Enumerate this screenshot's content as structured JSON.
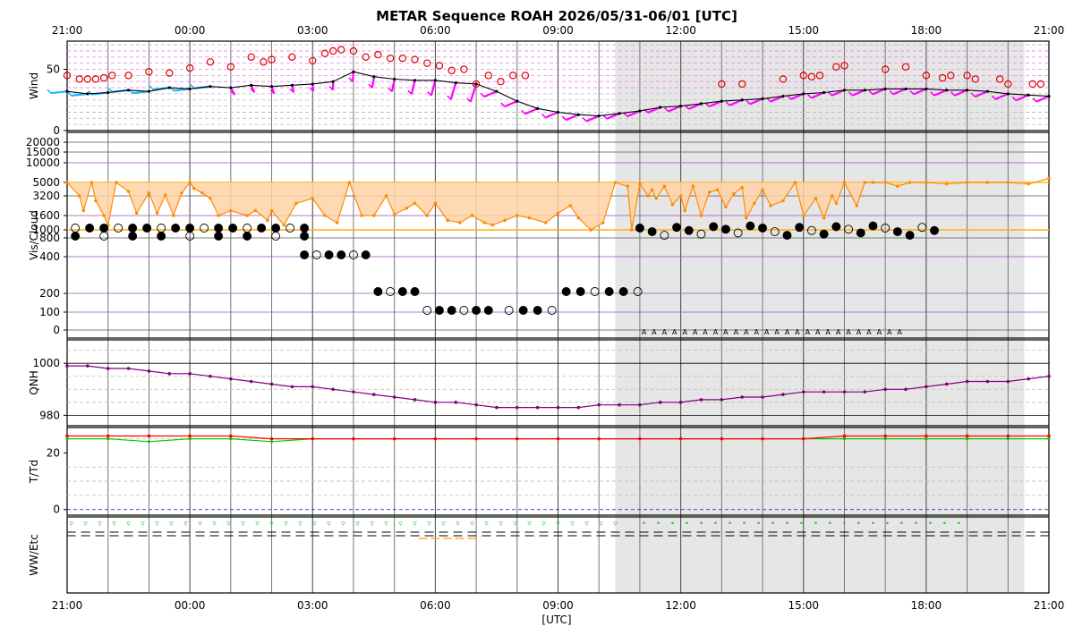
{
  "chart_data": {
    "type": "line",
    "title": "METAR Sequence ROAH 2026/05/31-06/01 [UTC]",
    "xlabel": "[UTC]",
    "x_ticks": [
      "21:00",
      "00:00",
      "03:00",
      "06:00",
      "09:00",
      "12:00",
      "15:00",
      "18:00",
      "21:00"
    ],
    "x_range_hours": [
      0,
      24
    ],
    "night_shading_hours": [
      13.4,
      23.4
    ],
    "colors": {
      "wind_gust": "#e00000",
      "wind_barb_low": "#1eb4ff",
      "wind_barb_high": "#ff00ff",
      "visibility": "#ff8c00",
      "visibility_fill": "#ffd2a6",
      "qnh": "#800080",
      "temperature": "#ff0000",
      "dewpoint": "#00cc00",
      "wx": "#22cc22",
      "shade": "#e6e6e6"
    },
    "panels": [
      {
        "id": "wind",
        "ylabel": "Wind",
        "yticks": [
          0,
          50
        ],
        "ylim": [
          0,
          73
        ],
        "series": [
          {
            "role": "wind_speed",
            "x": [
              0,
              0.5,
              1,
              1.5,
              2,
              2.5,
              3,
              3.5,
              4,
              4.5,
              5,
              5.5,
              6,
              6.5,
              7,
              7.5,
              8,
              8.5,
              9,
              9.5,
              10,
              10.5,
              11,
              11.5,
              12,
              12.5,
              13,
              13.5,
              14,
              14.5,
              15,
              15.5,
              16,
              16.5,
              17,
              17.5,
              18,
              18.5,
              19,
              19.5,
              20,
              20.5,
              21,
              21.5,
              22,
              22.5,
              23,
              23.5,
              24
            ],
            "y": [
              32,
              30,
              31,
              33,
              32,
              35,
              34,
              36,
              35,
              37,
              36,
              37,
              38,
              40,
              48,
              44,
              42,
              41,
              41,
              39,
              38,
              32,
              24,
              18,
              15,
              13,
              12,
              14,
              16,
              19,
              20,
              22,
              24,
              25,
              26,
              28,
              30,
              31,
              33,
              33,
              34,
              34,
              34,
              33,
              33,
              32,
              30,
              29,
              28
            ]
          },
          {
            "role": "wind_gust",
            "x": [
              0,
              0.3,
              0.5,
              0.7,
              0.9,
              1.1,
              1.5,
              2,
              2.5,
              3,
              3.5,
              4,
              4.5,
              4.8,
              5,
              5.5,
              6,
              6.3,
              6.5,
              6.7,
              7,
              7.3,
              7.6,
              7.9,
              8.2,
              8.5,
              8.8,
              9.1,
              9.4,
              9.7,
              10,
              10.3,
              10.6,
              10.9,
              11.2,
              16,
              16.5,
              17.5,
              18,
              18.2,
              18.4,
              18.8,
              19,
              20,
              20.5,
              21,
              21.4,
              21.6,
              22,
              22.2,
              22.8,
              23,
              23.6,
              23.8
            ],
            "y": [
              45,
              42,
              42,
              42,
              43,
              45,
              45,
              48,
              47,
              51,
              56,
              52,
              60,
              56,
              58,
              60,
              57,
              63,
              65,
              66,
              65,
              60,
              62,
              59,
              59,
              58,
              55,
              53,
              49,
              50,
              38,
              45,
              40,
              45,
              45,
              38,
              38,
              42,
              45,
              44,
              45,
              52,
              53,
              50,
              52,
              45,
              43,
              45,
              45,
              42,
              42,
              38,
              38,
              38
            ]
          }
        ]
      },
      {
        "id": "vis",
        "ylabel": "Vis/Cloud",
        "yticks": [
          "0",
          "100",
          "200",
          "400",
          "800",
          "1000",
          "1600",
          "3200",
          "5000",
          "10000",
          "15000",
          "20000"
        ],
        "series": [
          {
            "role": "visibility",
            "x": [
              0,
              0.3,
              0.4,
              0.6,
              0.7,
              0.9,
              1.0,
              1.2,
              1.5,
              1.7,
              2.0,
              2.2,
              2.4,
              2.6,
              2.8,
              3.0,
              3.1,
              3.3,
              3.5,
              3.7,
              4.0,
              4.4,
              4.6,
              4.9,
              5.0,
              5.3,
              5.6,
              6.0,
              6.3,
              6.6,
              6.9,
              7.2,
              7.5,
              7.8,
              8.0,
              8.3,
              8.5,
              8.8,
              9.0,
              9.3,
              9.6,
              9.9,
              10.2,
              10.4,
              10.7,
              11.0,
              11.3,
              11.7,
              12.0,
              12.3,
              12.5,
              12.8,
              13.1,
              13.4,
              13.7,
              13.8,
              14.0,
              14.2,
              14.3,
              14.4,
              14.6,
              14.8,
              15.0,
              15.1,
              15.3,
              15.5,
              15.7,
              15.9,
              16.1,
              16.3,
              16.5,
              16.6,
              16.8,
              17.0,
              17.2,
              17.5,
              17.8,
              18.0,
              18.3,
              18.5,
              18.7,
              18.8,
              19.0,
              19.3,
              19.5,
              19.7,
              20.0,
              20.3,
              20.6,
              21.0,
              21.5,
              22.0,
              22.5,
              23.0,
              23.5,
              24.0
            ],
            "y": [
              5000,
              3200,
              2000,
              5000,
              2800,
              1600,
              1200,
              5000,
              3800,
              1800,
              3600,
              1800,
              3300,
              1600,
              3600,
              5000,
              4200,
              3600,
              3000,
              1600,
              2000,
              1600,
              2000,
              1400,
              2000,
              1200,
              2600,
              3000,
              1600,
              1300,
              5000,
              1600,
              1600,
              3200,
              1700,
              2200,
              2600,
              1600,
              2600,
              1400,
              1300,
              1600,
              1300,
              1200,
              1400,
              1600,
              1500,
              1300,
              1800,
              2400,
              1500,
              1000,
              1300,
              5000,
              4500,
              1000,
              4800,
              3200,
              4000,
              3000,
              4500,
              2500,
              3200,
              2000,
              4500,
              1600,
              3700,
              4000,
              2300,
              3500,
              4300,
              1500,
              2600,
              4000,
              2400,
              2800,
              5000,
              1600,
              3000,
              1500,
              3200,
              2600,
              5000,
              2400,
              5000,
              5000,
              5000,
              4500,
              5000,
              5000,
              4800,
              5000,
              5000,
              5000,
              4800,
              6000
            ]
          }
        ]
      },
      {
        "id": "qnh",
        "ylabel": "QNH",
        "yticks": [
          980,
          1000
        ],
        "ylim": [
          976,
          1009
        ],
        "series": [
          {
            "role": "qnh",
            "x": [
              0,
              0.5,
              1,
              1.5,
              2,
              2.5,
              3,
              3.5,
              4,
              4.5,
              5,
              5.5,
              6,
              6.5,
              7,
              7.5,
              8,
              8.5,
              9,
              9.5,
              10,
              10.5,
              11,
              11.5,
              12,
              12.5,
              13,
              13.5,
              14,
              14.5,
              15,
              15.5,
              16,
              16.5,
              17,
              17.5,
              18,
              18.5,
              19,
              19.5,
              20,
              20.5,
              21,
              21.5,
              22,
              22.5,
              23,
              23.5,
              24
            ],
            "y": [
              999,
              999,
              998,
              998,
              997,
              996,
              996,
              995,
              994,
              993,
              992,
              991,
              991,
              990,
              989,
              988,
              987,
              986,
              985,
              985,
              984,
              983,
              983,
              983,
              983,
              983,
              984,
              984,
              984,
              985,
              985,
              986,
              986,
              987,
              987,
              988,
              989,
              989,
              989,
              989,
              990,
              990,
              991,
              992,
              993,
              993,
              993,
              994,
              995
            ]
          }
        ]
      },
      {
        "id": "ttd",
        "ylabel": "T/Td",
        "yticks": [
          0,
          20
        ],
        "ylim": [
          -2,
          29
        ],
        "series": [
          {
            "role": "temperature",
            "x": [
              0,
              1,
              2,
              3,
              4,
              5,
              6,
              7,
              8,
              9,
              10,
              11,
              12,
              13,
              14,
              15,
              16,
              17,
              18,
              19,
              20,
              21,
              22,
              23,
              24
            ],
            "y": [
              26,
              26,
              26,
              26,
              26,
              25,
              25,
              25,
              25,
              25,
              25,
              25,
              25,
              25,
              25,
              25,
              25,
              25,
              25,
              26,
              26,
              26,
              26,
              26,
              26
            ]
          },
          {
            "role": "dewpoint",
            "x": [
              0,
              1,
              2,
              3,
              4,
              5,
              6,
              7,
              8,
              9,
              10,
              11,
              12,
              13,
              14,
              15,
              16,
              17,
              18,
              19,
              20,
              21,
              22,
              23,
              24
            ],
            "y": [
              25,
              25,
              24,
              25,
              25,
              24,
              25,
              25,
              25,
              25,
              25,
              25,
              25,
              25,
              25,
              25,
              25,
              25,
              25,
              25,
              25,
              25,
              25,
              25,
              25
            ]
          }
        ]
      },
      {
        "id": "wx",
        "ylabel": "WW/Etc"
      }
    ]
  }
}
